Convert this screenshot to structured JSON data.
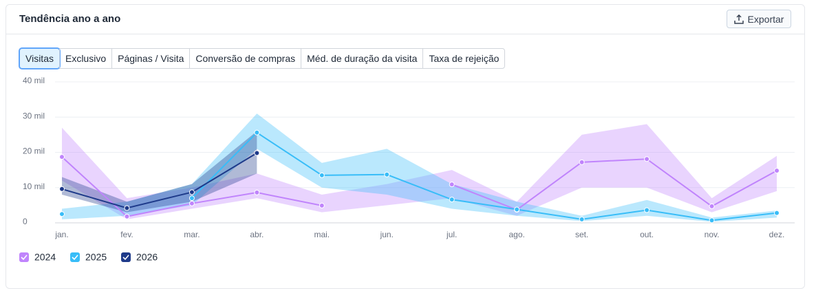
{
  "header": {
    "title": "Tendência ano a ano",
    "export": "Exportar"
  },
  "tabs": [
    "Visitas",
    "Exclusivo",
    "Páginas / Visita",
    "Conversão de compras",
    "Méd. de duração da visita",
    "Taxa de rejeição"
  ],
  "chart_data": {
    "type": "line",
    "categories": [
      "jan.",
      "fev.",
      "mar.",
      "abr.",
      "mai.",
      "jun.",
      "jul.",
      "ago.",
      "set.",
      "out.",
      "nov.",
      "dez."
    ],
    "ylim": [
      0,
      40000
    ],
    "yticks": [
      0,
      {
        "value": 10000,
        "label": "10 mil"
      },
      {
        "value": 20000,
        "label": "20 mil"
      },
      {
        "value": 30000,
        "label": "30 mil"
      },
      {
        "value": 40000,
        "label": "40 mil"
      }
    ],
    "grid": true,
    "series": [
      {
        "name": "2024",
        "color": "#c084fc",
        "values": [
          18700,
          1800,
          5500,
          8600,
          4900,
          null,
          10900,
          3700,
          17200,
          18100,
          4700,
          14800
        ],
        "range": [
          [
            12000,
            27000
          ],
          [
            1000,
            7000
          ],
          [
            4000,
            10000
          ],
          [
            7000,
            14000
          ],
          [
            3000,
            8000
          ],
          [
            5000,
            11000
          ],
          [
            7000,
            15000
          ],
          [
            2000,
            6000
          ],
          [
            10000,
            25000
          ],
          [
            10000,
            28000
          ],
          [
            3000,
            7000
          ],
          [
            9000,
            19000
          ]
        ]
      },
      {
        "name": "2025",
        "color": "#38bdf8",
        "values": [
          2500,
          null,
          7000,
          25600,
          13500,
          13700,
          6600,
          3800,
          1000,
          3600,
          700,
          2800
        ],
        "range": [
          [
            1000,
            4000
          ],
          [
            2000,
            6000
          ],
          [
            5000,
            11000
          ],
          [
            21000,
            31000
          ],
          [
            10000,
            17000
          ],
          [
            8000,
            21000
          ],
          [
            4000,
            11000
          ],
          [
            2000,
            6000
          ],
          [
            500,
            2000
          ],
          [
            2000,
            6500
          ],
          [
            300,
            1500
          ],
          [
            1500,
            3500
          ]
        ]
      },
      {
        "name": "2026",
        "color": "#1e3a8a",
        "values": [
          9600,
          4200,
          8700,
          19800,
          null,
          null,
          null,
          null,
          null,
          null,
          null,
          null
        ],
        "range": [
          [
            8000,
            13000
          ],
          [
            3000,
            6000
          ],
          [
            6000,
            11000
          ],
          [
            14000,
            26000
          ],
          null,
          null,
          null,
          null,
          null,
          null,
          null,
          null
        ]
      }
    ]
  }
}
